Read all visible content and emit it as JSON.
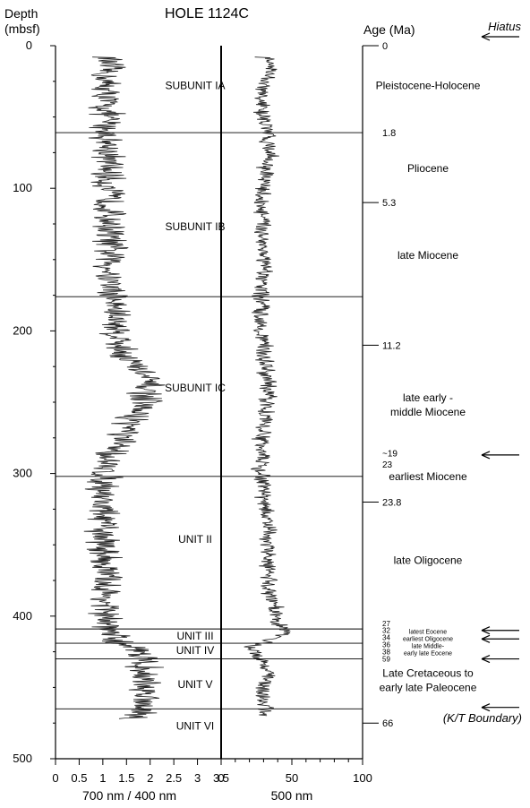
{
  "chart_data": {
    "type": "line",
    "title": "HOLE 1124C",
    "ylabel": [
      "Depth",
      "(mbsf)"
    ],
    "age_label": "Age (Ma)",
    "hiatus_label": "Hiatus",
    "kt_label": "(K/T Boundary)",
    "ylim": [
      0,
      500
    ],
    "yticks": [
      0,
      100,
      200,
      300,
      400,
      500
    ],
    "panels": [
      {
        "xlabel": "700 nm / 400 nm",
        "xlim": [
          0,
          3.5
        ],
        "xticks": [
          "0",
          "0.5",
          "1",
          "1.5",
          "2",
          "2.5",
          "3",
          "3.5"
        ],
        "profile": [
          [
            8,
            1.1
          ],
          [
            20,
            1.05
          ],
          [
            40,
            1.05
          ],
          [
            60,
            1.1
          ],
          [
            80,
            1.1
          ],
          [
            100,
            1.1
          ],
          [
            120,
            1.15
          ],
          [
            140,
            1.15
          ],
          [
            160,
            1.15
          ],
          [
            180,
            1.25
          ],
          [
            200,
            1.3
          ],
          [
            210,
            1.35
          ],
          [
            220,
            1.55
          ],
          [
            230,
            1.85
          ],
          [
            240,
            1.95
          ],
          [
            250,
            1.85
          ],
          [
            260,
            1.65
          ],
          [
            270,
            1.5
          ],
          [
            275,
            1.35
          ],
          [
            285,
            1.25
          ],
          [
            292,
            1.0
          ],
          [
            300,
            1.05
          ],
          [
            320,
            1.0
          ],
          [
            340,
            1.0
          ],
          [
            360,
            1.05
          ],
          [
            380,
            1.05
          ],
          [
            400,
            1.05
          ],
          [
            410,
            1.1
          ],
          [
            418,
            1.25
          ],
          [
            422,
            1.75
          ],
          [
            430,
            1.9
          ],
          [
            440,
            1.85
          ],
          [
            450,
            1.85
          ],
          [
            460,
            1.95
          ],
          [
            468,
            1.85
          ],
          [
            472,
            1.75
          ]
        ],
        "units": [
          {
            "label": "SUBUNIT IA",
            "depth": 28
          },
          {
            "label": "SUBUNIT IB",
            "depth": 127
          },
          {
            "label": "SUBUNIT IC",
            "depth": 240
          },
          {
            "label": "UNIT II",
            "depth": 346
          },
          {
            "label": "UNIT III",
            "depth": 414
          },
          {
            "label": "UNIT IV",
            "depth": 424
          },
          {
            "label": "UNIT V",
            "depth": 448
          },
          {
            "label": "UNIT VI",
            "depth": 477
          }
        ]
      },
      {
        "xlabel": "500 nm",
        "xlim": [
          0,
          100
        ],
        "xticks": [
          "0",
          "50",
          "100"
        ],
        "profile": [
          [
            8,
            30
          ],
          [
            15,
            38
          ],
          [
            25,
            30
          ],
          [
            40,
            28
          ],
          [
            60,
            32
          ],
          [
            75,
            35
          ],
          [
            90,
            31
          ],
          [
            110,
            28
          ],
          [
            130,
            30
          ],
          [
            150,
            30
          ],
          [
            170,
            29
          ],
          [
            190,
            28
          ],
          [
            210,
            30
          ],
          [
            230,
            32
          ],
          [
            250,
            33
          ],
          [
            265,
            31
          ],
          [
            275,
            28
          ],
          [
            285,
            30
          ],
          [
            295,
            27
          ],
          [
            310,
            30
          ],
          [
            330,
            32
          ],
          [
            350,
            33
          ],
          [
            370,
            33
          ],
          [
            385,
            35
          ],
          [
            395,
            38
          ],
          [
            405,
            40
          ],
          [
            412,
            48
          ],
          [
            416,
            35
          ],
          [
            422,
            20
          ],
          [
            430,
            30
          ],
          [
            440,
            33
          ],
          [
            450,
            30
          ],
          [
            460,
            30
          ],
          [
            470,
            32
          ]
        ]
      }
    ],
    "boundaries": [
      {
        "depth": 61,
        "age": "1.8"
      },
      {
        "depth": 176
      },
      {
        "depth": 302
      },
      {
        "depth": 409
      },
      {
        "depth": 419
      },
      {
        "depth": 430
      },
      {
        "depth": 465
      }
    ],
    "age_ticks": [
      {
        "depth": 0,
        "label": "0"
      },
      {
        "depth": 110,
        "label": "5.3"
      },
      {
        "depth": 210,
        "label": "11.2"
      },
      {
        "depth": 320,
        "label": "23.8"
      },
      {
        "depth": 475,
        "label": "66"
      }
    ],
    "age_text_ticks": [
      {
        "depth": 286,
        "label": "~19"
      },
      {
        "depth": 294,
        "label": "23"
      },
      {
        "depth": 405,
        "label": "27"
      },
      {
        "depth": 410,
        "label": "32"
      },
      {
        "depth": 415,
        "label": "34"
      },
      {
        "depth": 420,
        "label": "36"
      },
      {
        "depth": 425,
        "label": "38"
      },
      {
        "depth": 430,
        "label": "59"
      }
    ],
    "epochs": [
      {
        "label": "Pleistocene-Holocene",
        "depth": 28,
        "size": 12
      },
      {
        "label": "Pliocene",
        "depth": 86,
        "size": 12
      },
      {
        "label": "late Miocene",
        "depth": 147,
        "size": 12
      },
      {
        "label": "late early -",
        "depth": 247,
        "size": 12
      },
      {
        "label": "middle Miocene",
        "depth": 257,
        "size": 12
      },
      {
        "label": "earliest Miocene",
        "depth": 302,
        "size": 12
      },
      {
        "label": "late Oligocene",
        "depth": 361,
        "size": 12
      },
      {
        "label": "latest Eocene",
        "depth": 410,
        "size": 7
      },
      {
        "label": "earliest Oligocene",
        "depth": 415,
        "size": 7
      },
      {
        "label": "late Middle-",
        "depth": 420,
        "size": 7
      },
      {
        "label": "early late Eocene",
        "depth": 425,
        "size": 7
      },
      {
        "label": "Late Cretaceous to",
        "depth": 440,
        "size": 12
      },
      {
        "label": "early late Paleocene",
        "depth": 450,
        "size": 12
      }
    ],
    "hiatus_arrows": [
      0,
      287,
      410,
      416,
      430,
      464
    ],
    "grid": false
  }
}
